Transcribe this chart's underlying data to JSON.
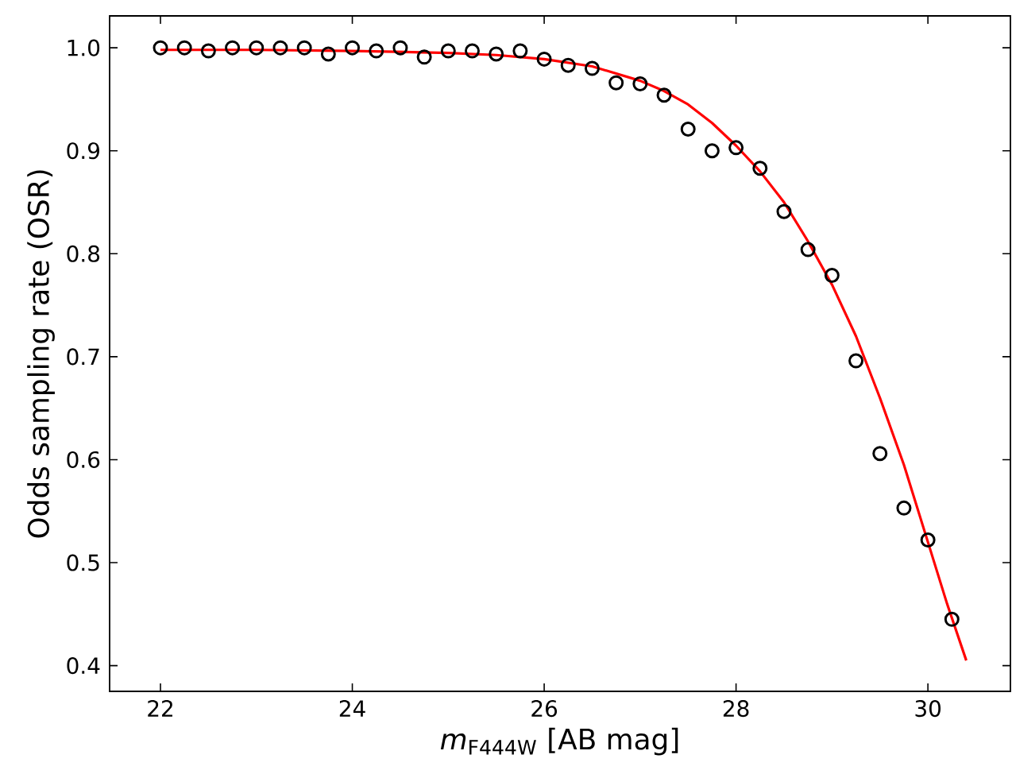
{
  "chart_data": {
    "type": "scatter",
    "xlabel": "*m*$_{F444W}$ [AB mag]",
    "ylabel": "Odds sampling rate (OSR)",
    "xlim": [
      21.47,
      30.86
    ],
    "ylim": [
      0.375,
      1.031
    ],
    "xticks": [
      22,
      24,
      26,
      28,
      30
    ],
    "yticks": [
      0.4,
      0.5,
      0.6,
      0.7,
      0.8,
      0.9,
      {
        "value": 1.0,
        "label": "1.0"
      }
    ],
    "grid": false,
    "series": [
      {
        "marker": "circle",
        "color": "#000000",
        "x": [
          22,
          22.25,
          22.5,
          22.75,
          23,
          23.25,
          23.5,
          23.75,
          24,
          24.25,
          24.5,
          24.75,
          25,
          25.25,
          25.5,
          25.75,
          26,
          26.25,
          26.5,
          26.75,
          27,
          27.25,
          27.5,
          27.75,
          28,
          28.25,
          28.5,
          28.75,
          29,
          29.25,
          29.5,
          29.75,
          30,
          30.25
        ],
        "values": [
          1.0,
          1.0,
          0.997,
          1.0,
          1.0,
          1.0,
          1.0,
          0.994,
          1.0,
          0.997,
          1.0,
          0.991,
          0.997,
          0.997,
          0.994,
          0.997,
          0.989,
          0.983,
          0.98,
          0.966,
          0.965,
          0.954,
          0.921,
          0.9,
          0.903,
          0.883,
          0.841,
          0.804,
          0.779,
          0.696,
          0.606,
          0.553,
          0.522,
          0.445
        ]
      },
      {
        "type": "line",
        "marker": "none",
        "color": "#ff0000",
        "x": [
          22,
          23,
          24,
          25,
          25.5,
          26,
          26.5,
          27,
          27.25,
          27.5,
          27.75,
          28,
          28.25,
          28.5,
          28.75,
          29,
          29.25,
          29.5,
          29.75,
          30,
          30.2,
          30.4
        ],
        "values": [
          0.998,
          0.998,
          0.997,
          0.995,
          0.993,
          0.989,
          0.982,
          0.968,
          0.958,
          0.945,
          0.927,
          0.905,
          0.88,
          0.85,
          0.812,
          0.77,
          0.72,
          0.66,
          0.595,
          0.52,
          0.46,
          0.405
        ]
      }
    ]
  }
}
